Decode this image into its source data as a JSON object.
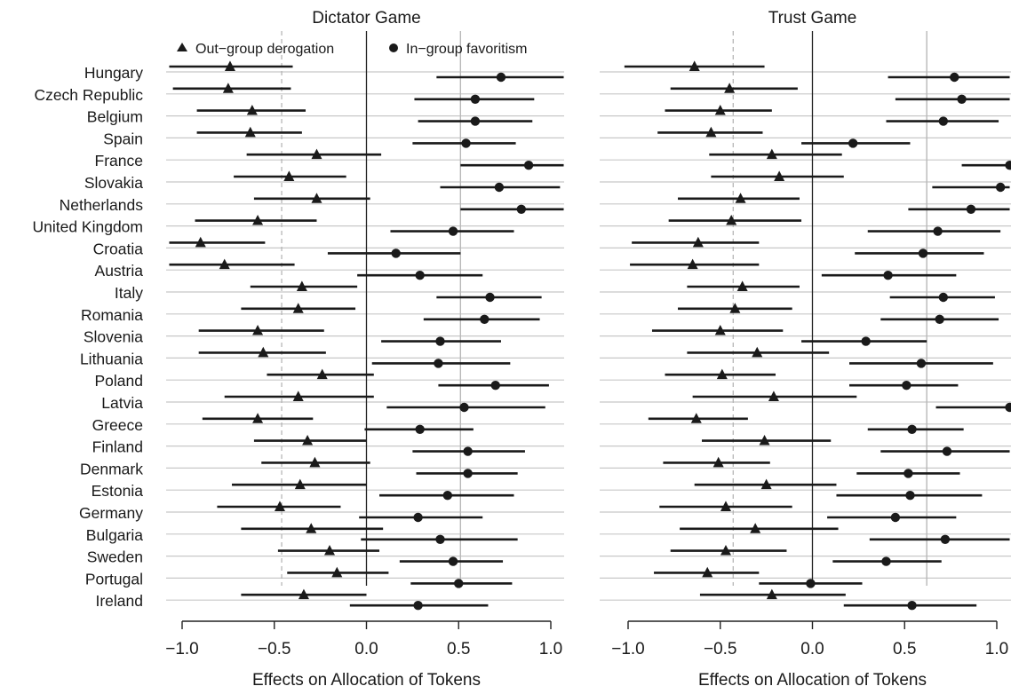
{
  "chart_data": [
    {
      "type": "scatter",
      "title": "Dictator Game",
      "xlabel": "Effects on Allocation of Tokens",
      "ylabel": "",
      "xlim": [
        -1.0,
        1.0
      ],
      "xticks": [
        "−1.0",
        "−0.5",
        "0.0",
        "0.5",
        "1.0"
      ],
      "xtick_values": [
        -1.0,
        -0.5,
        0.0,
        0.5,
        1.0
      ],
      "reference_lines": {
        "dashed": -0.46,
        "solid_light": 0.51,
        "solid_dark": 0.0
      },
      "legend": {
        "placement": "top",
        "entries": [
          "Out−group derogation",
          "In−group favoritism"
        ]
      },
      "categories": [
        "Hungary",
        "Czech Republic",
        "Belgium",
        "Spain",
        "France",
        "Slovakia",
        "Netherlands",
        "United Kingdom",
        "Croatia",
        "Austria",
        "Italy",
        "Romania",
        "Slovenia",
        "Lithuania",
        "Poland",
        "Latvia",
        "Greece",
        "Finland",
        "Denmark",
        "Estonia",
        "Germany",
        "Bulgaria",
        "Sweden",
        "Portugal",
        "Ireland"
      ],
      "series": [
        {
          "name": "Out−group derogation",
          "marker": "triangle",
          "values": [
            -0.74,
            -0.75,
            -0.62,
            -0.63,
            -0.27,
            -0.42,
            -0.27,
            -0.59,
            -0.9,
            -0.77,
            -0.35,
            -0.37,
            -0.59,
            -0.56,
            -0.24,
            -0.37,
            -0.59,
            -0.32,
            -0.28,
            -0.36,
            -0.47,
            -0.3,
            -0.2,
            -0.16,
            -0.34
          ],
          "ci": [
            [
              -1.07,
              -0.4
            ],
            [
              -1.05,
              -0.41
            ],
            [
              -0.92,
              -0.33
            ],
            [
              -0.92,
              -0.35
            ],
            [
              -0.65,
              0.08
            ],
            [
              -0.72,
              -0.11
            ],
            [
              -0.61,
              0.02
            ],
            [
              -0.93,
              -0.27
            ],
            [
              -1.07,
              -0.55
            ],
            [
              -1.07,
              -0.39
            ],
            [
              -0.63,
              -0.05
            ],
            [
              -0.68,
              -0.06
            ],
            [
              -0.91,
              -0.23
            ],
            [
              -0.91,
              -0.22
            ],
            [
              -0.54,
              0.04
            ],
            [
              -0.77,
              0.04
            ],
            [
              -0.89,
              -0.29
            ],
            [
              -0.61,
              0.0
            ],
            [
              -0.57,
              0.02
            ],
            [
              -0.73,
              0.0
            ],
            [
              -0.81,
              -0.14
            ],
            [
              -0.68,
              0.09
            ],
            [
              -0.48,
              0.07
            ],
            [
              -0.43,
              0.12
            ],
            [
              -0.68,
              0.0
            ]
          ]
        },
        {
          "name": "In−group favoritism",
          "marker": "circle",
          "values": [
            0.73,
            0.59,
            0.59,
            0.54,
            0.88,
            0.72,
            0.84,
            0.47,
            0.16,
            0.29,
            0.67,
            0.64,
            0.4,
            0.39,
            0.7,
            0.53,
            0.29,
            0.55,
            0.55,
            0.44,
            0.28,
            0.4,
            0.47,
            0.5,
            0.28
          ],
          "ci": [
            [
              0.38,
              1.07
            ],
            [
              0.26,
              0.91
            ],
            [
              0.28,
              0.9
            ],
            [
              0.25,
              0.81
            ],
            [
              0.51,
              1.07
            ],
            [
              0.4,
              1.05
            ],
            [
              0.51,
              1.07
            ],
            [
              0.13,
              0.8
            ],
            [
              -0.21,
              0.51
            ],
            [
              -0.05,
              0.63
            ],
            [
              0.38,
              0.95
            ],
            [
              0.31,
              0.94
            ],
            [
              0.08,
              0.73
            ],
            [
              0.03,
              0.78
            ],
            [
              0.39,
              0.99
            ],
            [
              0.11,
              0.97
            ],
            [
              -0.01,
              0.58
            ],
            [
              0.25,
              0.86
            ],
            [
              0.27,
              0.82
            ],
            [
              0.07,
              0.8
            ],
            [
              -0.04,
              0.63
            ],
            [
              -0.03,
              0.82
            ],
            [
              0.18,
              0.74
            ],
            [
              0.24,
              0.79
            ],
            [
              -0.09,
              0.66
            ]
          ]
        }
      ]
    },
    {
      "type": "scatter",
      "title": "Trust Game",
      "xlabel": "Effects on Allocation of Tokens",
      "ylabel": "",
      "xlim": [
        -1.0,
        1.0
      ],
      "xticks": [
        "−1.0",
        "−0.5",
        "0.0",
        "0.5",
        "1.0"
      ],
      "xtick_values": [
        -1.0,
        -0.5,
        0.0,
        0.5,
        1.0
      ],
      "reference_lines": {
        "dashed": -0.43,
        "solid_light": 0.62,
        "solid_dark": 0.0
      },
      "categories": [
        "Hungary",
        "Czech Republic",
        "Belgium",
        "Spain",
        "France",
        "Slovakia",
        "Netherlands",
        "United Kingdom",
        "Croatia",
        "Austria",
        "Italy",
        "Romania",
        "Slovenia",
        "Lithuania",
        "Poland",
        "Latvia",
        "Greece",
        "Finland",
        "Denmark",
        "Estonia",
        "Germany",
        "Bulgaria",
        "Sweden",
        "Portugal",
        "Ireland"
      ],
      "series": [
        {
          "name": "Out−group derogation",
          "marker": "triangle",
          "values": [
            -0.64,
            -0.45,
            -0.5,
            -0.55,
            -0.22,
            -0.18,
            -0.39,
            -0.44,
            -0.62,
            -0.65,
            -0.38,
            -0.42,
            -0.5,
            -0.3,
            -0.49,
            -0.21,
            -0.63,
            -0.26,
            -0.51,
            -0.25,
            -0.47,
            -0.31,
            -0.47,
            -0.57,
            -0.22
          ],
          "ci": [
            [
              -1.02,
              -0.26
            ],
            [
              -0.77,
              -0.08
            ],
            [
              -0.8,
              -0.22
            ],
            [
              -0.84,
              -0.27
            ],
            [
              -0.56,
              0.16
            ],
            [
              -0.55,
              0.17
            ],
            [
              -0.73,
              -0.07
            ],
            [
              -0.78,
              -0.06
            ],
            [
              -0.98,
              -0.29
            ],
            [
              -0.99,
              -0.29
            ],
            [
              -0.68,
              -0.07
            ],
            [
              -0.73,
              -0.11
            ],
            [
              -0.87,
              -0.16
            ],
            [
              -0.68,
              0.09
            ],
            [
              -0.8,
              -0.2
            ],
            [
              -0.65,
              0.24
            ],
            [
              -0.89,
              -0.35
            ],
            [
              -0.6,
              0.1
            ],
            [
              -0.81,
              -0.23
            ],
            [
              -0.64,
              0.13
            ],
            [
              -0.83,
              -0.11
            ],
            [
              -0.72,
              0.14
            ],
            [
              -0.77,
              -0.14
            ],
            [
              -0.86,
              -0.29
            ],
            [
              -0.61,
              0.18
            ]
          ]
        },
        {
          "name": "In−group favoritism",
          "marker": "circle",
          "values": [
            0.77,
            0.81,
            0.71,
            0.22,
            1.07,
            1.02,
            0.86,
            0.68,
            0.6,
            0.41,
            0.71,
            0.69,
            0.29,
            0.59,
            0.51,
            1.07,
            0.54,
            0.73,
            0.52,
            0.53,
            0.45,
            0.72,
            0.4,
            -0.01,
            0.54
          ],
          "ci": [
            [
              0.41,
              1.07
            ],
            [
              0.45,
              1.07
            ],
            [
              0.4,
              1.01
            ],
            [
              -0.06,
              0.53
            ],
            [
              0.81,
              1.07
            ],
            [
              0.65,
              1.07
            ],
            [
              0.52,
              1.07
            ],
            [
              0.3,
              1.02
            ],
            [
              0.23,
              0.93
            ],
            [
              0.05,
              0.78
            ],
            [
              0.42,
              0.99
            ],
            [
              0.37,
              1.01
            ],
            [
              -0.06,
              0.62
            ],
            [
              0.2,
              0.98
            ],
            [
              0.2,
              0.79
            ],
            [
              0.67,
              1.07
            ],
            [
              0.3,
              0.82
            ],
            [
              0.37,
              1.07
            ],
            [
              0.24,
              0.8
            ],
            [
              0.13,
              0.92
            ],
            [
              0.08,
              0.78
            ],
            [
              0.31,
              1.07
            ],
            [
              0.11,
              0.7
            ],
            [
              -0.29,
              0.27
            ],
            [
              0.17,
              0.89
            ]
          ]
        }
      ]
    }
  ]
}
